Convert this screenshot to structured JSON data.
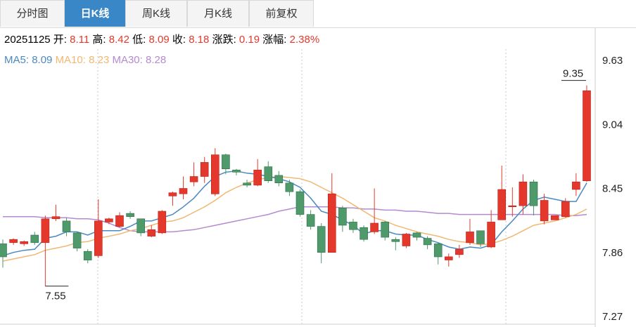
{
  "tabs": [
    {
      "label": "分时图",
      "active": false
    },
    {
      "label": "日K线",
      "active": true
    },
    {
      "label": "周K线",
      "active": false
    },
    {
      "label": "月K线",
      "active": false
    },
    {
      "label": "前复权",
      "active": false
    }
  ],
  "info": {
    "date": "20251125",
    "open_label": "开:",
    "open": "8.11",
    "high_label": "高:",
    "high": "8.42",
    "low_label": "低:",
    "low": "8.09",
    "close_label": "收:",
    "close": "8.18",
    "change_label": "涨跌:",
    "change": "0.19",
    "pct_label": "涨幅:",
    "pct": "2.38%"
  },
  "ma": {
    "ma5_label": "MA5:",
    "ma5": "8.09",
    "ma10_label": "MA10:",
    "ma10": "8.23",
    "ma30_label": "MA30:",
    "ma30": "8.28"
  },
  "colors": {
    "up": "#e5382c",
    "down": "#4e9a6a",
    "ma5": "#4a89c0",
    "ma10": "#f0b872",
    "ma30": "#b48ad0",
    "active_tab": "#3a87c8"
  },
  "chart_data": {
    "type": "candlestick",
    "y_ticks": [
      "9.63",
      "9.04",
      "8.45",
      "7.86",
      "7.27"
    ],
    "ylim": [
      7.27,
      9.63
    ],
    "max_label": "9.35",
    "min_label": "7.55",
    "candles": [
      [
        7.94,
        7.82,
        7.98,
        7.72
      ],
      [
        7.95,
        7.98,
        7.99,
        7.93
      ],
      [
        7.94,
        7.96,
        7.97,
        7.92
      ],
      [
        8.02,
        7.95,
        8.05,
        7.93
      ],
      [
        7.95,
        8.17,
        8.2,
        7.55
      ],
      [
        8.17,
        8.19,
        8.3,
        8.15
      ],
      [
        8.15,
        8.05,
        8.18,
        8.01
      ],
      [
        8.04,
        7.9,
        8.05,
        7.87
      ],
      [
        7.87,
        7.79,
        7.89,
        7.76
      ],
      [
        7.83,
        8.15,
        8.35,
        7.81
      ],
      [
        8.14,
        8.17,
        8.18,
        8.12
      ],
      [
        8.1,
        8.2,
        8.23,
        8.09
      ],
      [
        8.22,
        8.19,
        8.24,
        8.17
      ],
      [
        8.17,
        8.04,
        8.17,
        8.01
      ],
      [
        8.01,
        8.07,
        8.11,
        8.0
      ],
      [
        8.04,
        8.24,
        8.25,
        8.03
      ],
      [
        8.38,
        8.41,
        8.42,
        8.29
      ],
      [
        8.4,
        8.45,
        8.56,
        8.35
      ],
      [
        8.51,
        8.56,
        8.69,
        8.47
      ],
      [
        8.56,
        8.69,
        8.74,
        8.5
      ],
      [
        8.4,
        8.76,
        8.82,
        8.38
      ],
      [
        8.76,
        8.63,
        8.77,
        8.58
      ],
      [
        8.62,
        8.6,
        8.63,
        8.57
      ],
      [
        8.5,
        8.48,
        8.53,
        8.46
      ],
      [
        8.48,
        8.62,
        8.72,
        8.47
      ],
      [
        8.65,
        8.52,
        8.7,
        8.5
      ],
      [
        8.57,
        8.5,
        8.61,
        8.47
      ],
      [
        8.5,
        8.42,
        8.53,
        8.38
      ],
      [
        8.42,
        8.21,
        8.44,
        8.19
      ],
      [
        8.21,
        8.1,
        8.25,
        8.07
      ],
      [
        8.1,
        7.86,
        8.13,
        7.76
      ],
      [
        7.86,
        8.4,
        8.59,
        7.86
      ],
      [
        8.27,
        8.11,
        8.29,
        8.05
      ],
      [
        8.14,
        8.07,
        8.17,
        8.04
      ],
      [
        8.09,
        7.98,
        8.11,
        7.96
      ],
      [
        8.05,
        8.13,
        8.45,
        8.03
      ],
      [
        8.14,
        8.0,
        8.15,
        7.97
      ],
      [
        7.98,
        7.96,
        8.0,
        7.88
      ],
      [
        7.92,
        8.03,
        8.04,
        7.9
      ],
      [
        8.04,
        8.0,
        8.05,
        7.97
      ],
      [
        7.99,
        7.93,
        8.01,
        7.89
      ],
      [
        7.94,
        7.82,
        7.95,
        7.75
      ],
      [
        7.79,
        7.82,
        7.85,
        7.73
      ],
      [
        7.84,
        7.89,
        7.93,
        7.81
      ],
      [
        7.95,
        8.05,
        8.17,
        7.93
      ],
      [
        8.06,
        7.94,
        8.06,
        7.91
      ],
      [
        7.91,
        8.14,
        8.25,
        7.9
      ],
      [
        8.16,
        8.44,
        8.66,
        8.16
      ],
      [
        8.29,
        8.29,
        8.46,
        8.19
      ],
      [
        8.29,
        8.51,
        8.58,
        8.21
      ],
      [
        8.51,
        8.29,
        8.53,
        8.2
      ],
      [
        8.15,
        8.34,
        8.4,
        8.12
      ],
      [
        8.16,
        8.2,
        8.2,
        8.16
      ],
      [
        8.19,
        8.33,
        8.36,
        8.18
      ],
      [
        8.44,
        8.51,
        8.59,
        8.38
      ],
      [
        8.52,
        9.35,
        9.4,
        8.51
      ]
    ],
    "ma5": [
      7.83,
      7.86,
      7.88,
      7.89,
      7.99,
      8.01,
      8.05,
      8.05,
      8.02,
      8.06,
      8.06,
      8.06,
      8.1,
      8.15,
      8.15,
      8.18,
      8.21,
      8.28,
      8.36,
      8.47,
      8.56,
      8.6,
      8.61,
      8.59,
      8.58,
      8.56,
      8.54,
      8.51,
      8.46,
      8.36,
      8.24,
      8.21,
      8.16,
      8.11,
      8.03,
      8.06,
      8.06,
      8.03,
      8.02,
      8.02,
      7.98,
      7.95,
      7.91,
      7.89,
      7.91,
      7.9,
      7.93,
      8.05,
      8.15,
      8.26,
      8.34,
      8.37,
      8.35,
      8.33,
      8.33,
      8.5
    ],
    "ma10": [
      7.78,
      7.8,
      7.82,
      7.84,
      7.88,
      7.9,
      7.92,
      7.95,
      7.96,
      7.99,
      8.01,
      8.03,
      8.06,
      8.08,
      8.11,
      8.14,
      8.15,
      8.18,
      8.23,
      8.28,
      8.34,
      8.41,
      8.46,
      8.5,
      8.53,
      8.55,
      8.56,
      8.55,
      8.54,
      8.51,
      8.46,
      8.41,
      8.36,
      8.3,
      8.24,
      8.18,
      8.15,
      8.11,
      8.08,
      8.05,
      8.03,
      8.01,
      7.98,
      7.96,
      7.95,
      7.93,
      7.94,
      7.97,
      8.01,
      8.06,
      8.11,
      8.13,
      8.15,
      8.18,
      8.21,
      8.26
    ],
    "ma30": [
      8.19,
      8.19,
      8.19,
      8.19,
      8.18,
      8.18,
      8.18,
      8.17,
      8.17,
      8.16,
      8.13,
      8.09,
      8.06,
      8.05,
      8.05,
      8.05,
      8.05,
      8.06,
      8.07,
      8.09,
      8.11,
      8.13,
      8.15,
      8.17,
      8.19,
      8.21,
      8.24,
      8.26,
      8.28,
      8.28,
      8.28,
      8.28,
      8.27,
      8.27,
      8.26,
      8.26,
      8.25,
      8.25,
      8.24,
      8.24,
      8.23,
      8.22,
      8.22,
      8.21,
      8.21,
      8.21,
      8.21,
      8.21,
      8.21,
      8.21,
      8.21,
      8.21,
      8.21,
      8.2,
      8.2,
      8.21
    ]
  }
}
